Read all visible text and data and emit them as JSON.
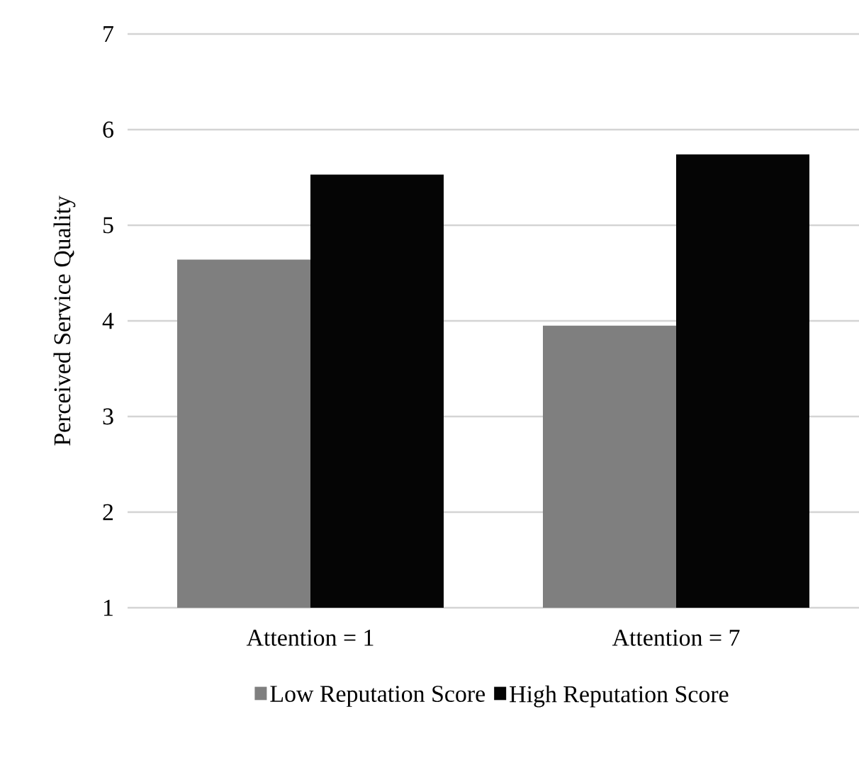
{
  "chart_data": {
    "type": "bar",
    "ylabel": "Perceived Service Quality",
    "categories": [
      "Attention = 1",
      "Attention = 7"
    ],
    "series": [
      {
        "name": "Low Reputation Score",
        "color": "#7f7f7f",
        "values": [
          4.64,
          3.95
        ]
      },
      {
        "name": "High Reputation Score",
        "color": "#050505",
        "values": [
          5.53,
          5.74
        ]
      }
    ],
    "ylim": [
      1,
      7
    ],
    "yticks": [
      1,
      2,
      3,
      4,
      5,
      6,
      7
    ],
    "grid": "y",
    "legend": "bottom"
  }
}
